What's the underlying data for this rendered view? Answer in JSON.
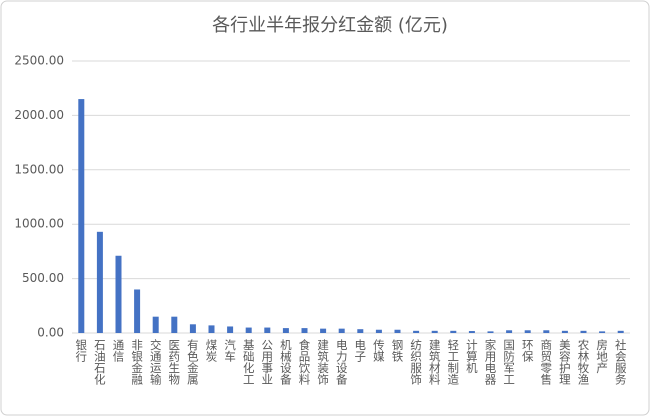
{
  "chart_data": {
    "type": "bar",
    "title": "各行业半年报分红金额 (亿元)",
    "categories": [
      "银行",
      "石油石化",
      "通信",
      "非银金融",
      "交通运输",
      "医药生物",
      "有色金属",
      "煤炭",
      "汽车",
      "基础化工",
      "公用事业",
      "机械设备",
      "食品饮料",
      "建筑装饰",
      "电力设备",
      "电子",
      "传媒",
      "钢铁",
      "纺织服饰",
      "建筑材料",
      "轻工制造",
      "计算机",
      "家用电器",
      "国防军工",
      "环保",
      "商贸零售",
      "美容护理",
      "农林牧渔",
      "房地产",
      "社会服务"
    ],
    "values": [
      2150,
      930,
      710,
      400,
      150,
      150,
      80,
      70,
      60,
      50,
      50,
      45,
      45,
      40,
      40,
      35,
      30,
      30,
      20,
      20,
      20,
      18,
      15,
      25,
      25,
      25,
      20,
      20,
      15,
      20
    ],
    "color": "#4472c4",
    "ylim": [
      0,
      2500
    ],
    "yticks": [
      {
        "value": 0,
        "label": "0.00"
      },
      {
        "value": 500,
        "label": "500.00"
      },
      {
        "value": 1000,
        "label": "1000.00"
      },
      {
        "value": 1500,
        "label": "1500.00"
      },
      {
        "value": 2000,
        "label": "2000.00"
      },
      {
        "value": 2500,
        "label": "2500.00"
      }
    ],
    "grid": true
  }
}
